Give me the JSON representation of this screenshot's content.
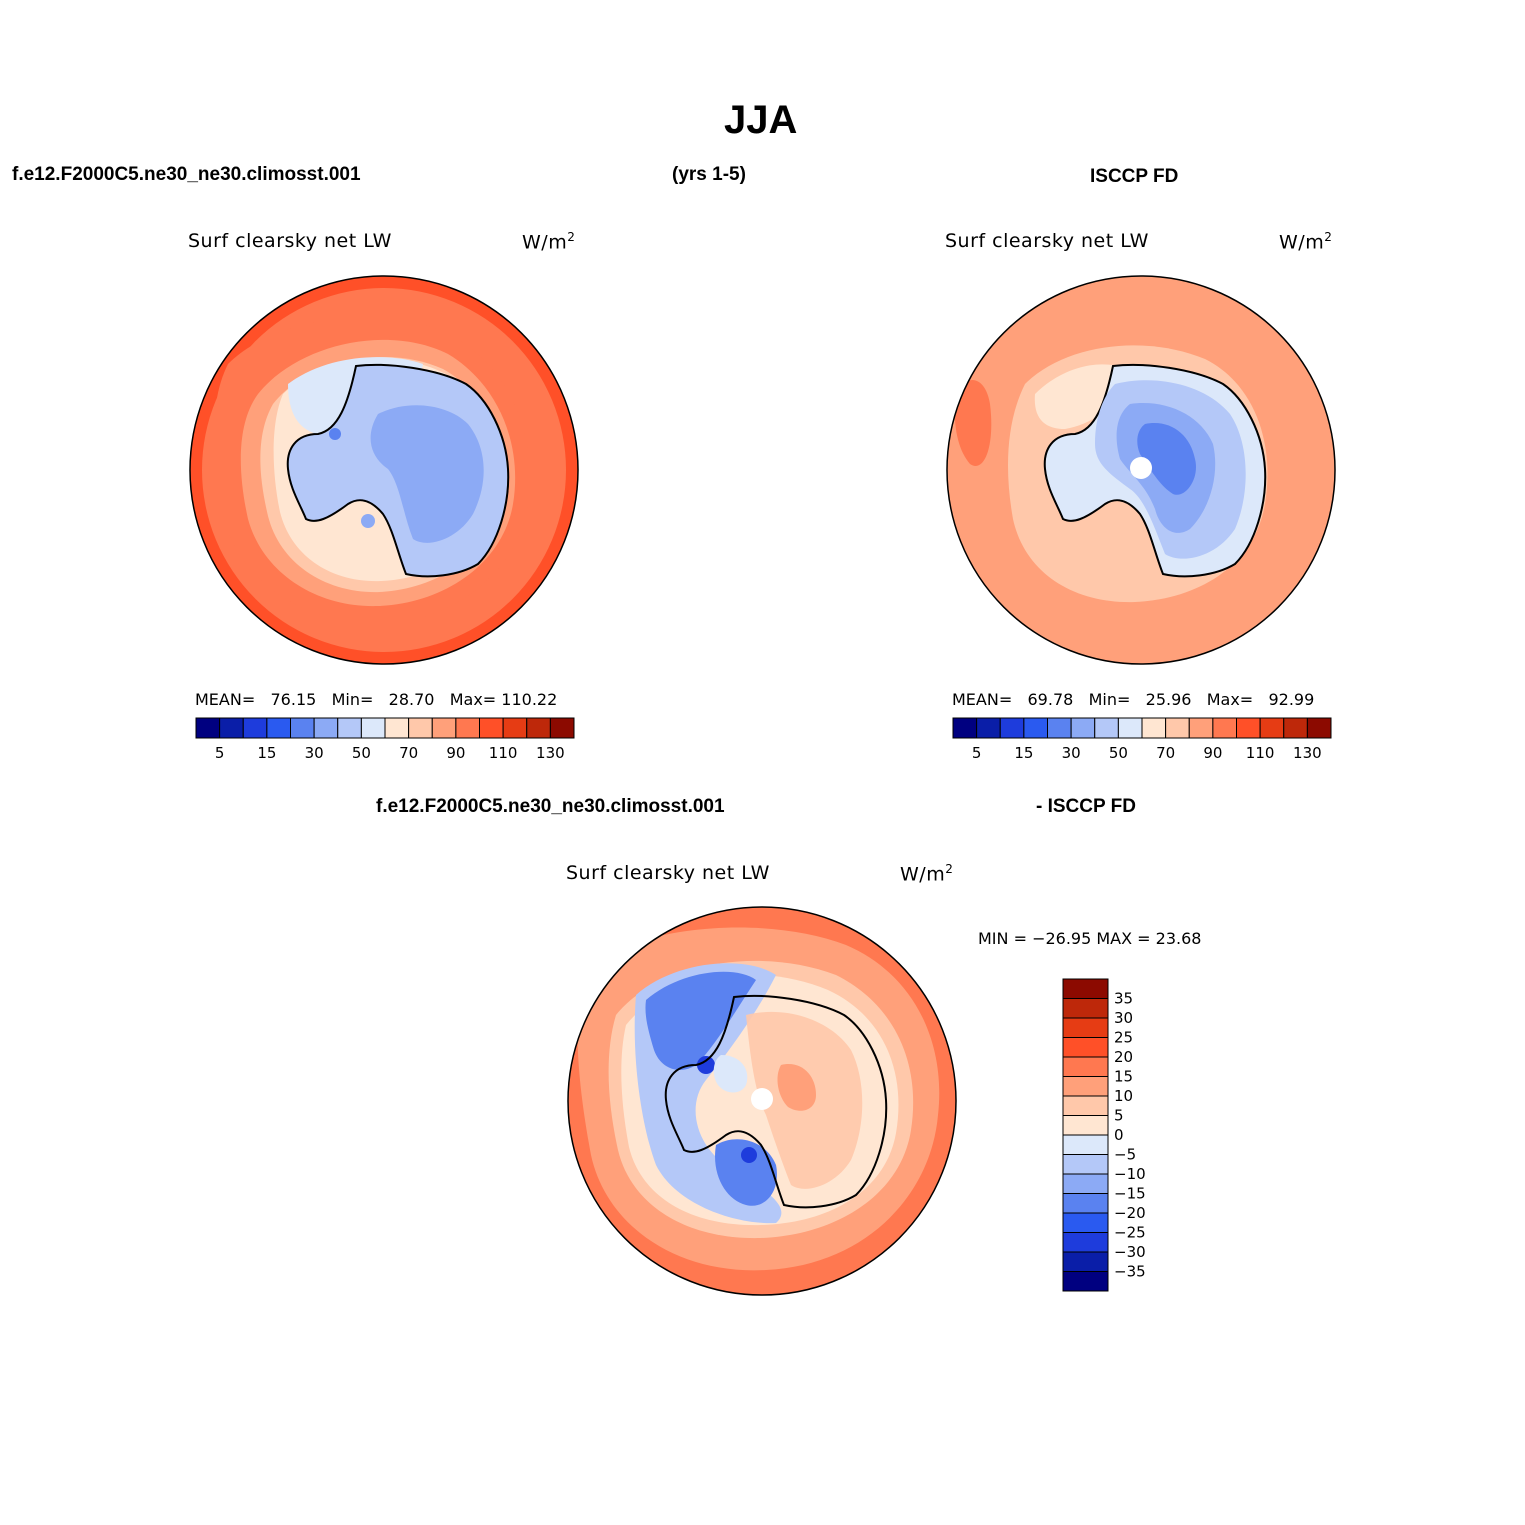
{
  "figure": {
    "season": "JJA",
    "case_name": "f.e12.F2000C5.ne30_ne30.climosst.001",
    "years": "(yrs 1-5)",
    "obs_name": "ISCCP FD",
    "diff_case_name": "f.e12.F2000C5.ne30_ne30.climosst.001",
    "diff_obs_name": "- ISCCP FD"
  },
  "panels": {
    "model": {
      "variable": "Surf  clearsky  net  LW",
      "units_base": "W/m",
      "units_exp": "2",
      "stats": {
        "mean_label": "MEAN=",
        "mean": "76.15",
        "min_label": "Min=",
        "min": "28.70",
        "max_label": "Max=",
        "max": "110.22"
      }
    },
    "obs": {
      "variable": "Surf  clearsky  net  LW",
      "units_base": "W/m",
      "units_exp": "2",
      "stats": {
        "mean_label": "MEAN=",
        "mean": "69.78",
        "min_label": "Min=",
        "min": "25.96",
        "max_label": "Max=",
        "max": "92.99"
      }
    },
    "diff": {
      "variable": "Surf  clearsky  net  LW",
      "units_base": "W/m",
      "units_exp": "2",
      "stats_line": "MIN = −26.95  MAX =   23.68"
    }
  },
  "colorbars": {
    "abs": {
      "colors": [
        "#000080",
        "#0a1ea8",
        "#1e3cdc",
        "#2a5af0",
        "#5a82f0",
        "#8caaf5",
        "#b4c8f8",
        "#dce8fa",
        "#ffe6d2",
        "#ffc8aa",
        "#ffa07a",
        "#ff7850",
        "#ff5028",
        "#e63c14",
        "#be280a",
        "#8c0a00"
      ],
      "tick_labels": [
        "5",
        "15",
        "30",
        "50",
        "70",
        "90",
        "110",
        "130"
      ]
    },
    "diff": {
      "colors": [
        "#000080",
        "#0a1ea8",
        "#1e3cdc",
        "#2a5af0",
        "#5a82f0",
        "#8caaf5",
        "#b4c8f8",
        "#dce8fa",
        "#ffe6d2",
        "#ffc8aa",
        "#ffa07a",
        "#ff7850",
        "#ff5028",
        "#e63c14",
        "#be280a",
        "#8c0a00"
      ],
      "tick_labels": [
        "35",
        "30",
        "25",
        "20",
        "15",
        "10",
        "5",
        "0",
        "−5",
        "−10",
        "−15",
        "−20",
        "−25",
        "−30",
        "−35"
      ]
    }
  }
}
